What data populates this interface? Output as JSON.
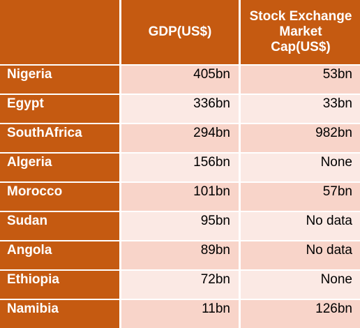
{
  "table": {
    "headers": {
      "corner": "",
      "gdp": "GDP(US$)",
      "market_cap": "Stock Exchange\nMarket\nCap(US$)"
    },
    "rows": [
      {
        "country": "Nigeria",
        "gdp": "405bn",
        "market_cap": "53bn"
      },
      {
        "country": "Egypt",
        "gdp": "336bn",
        "market_cap": "33bn"
      },
      {
        "country": "SouthAfrica",
        "gdp": "294bn",
        "market_cap": "982bn"
      },
      {
        "country": "Algeria",
        "gdp": "156bn",
        "market_cap": "None"
      },
      {
        "country": "Morocco",
        "gdp": "101bn",
        "market_cap": "57bn"
      },
      {
        "country": "Sudan",
        "gdp": "95bn",
        "market_cap": "No data"
      },
      {
        "country": "Angola",
        "gdp": "89bn",
        "market_cap": "No data"
      },
      {
        "country": "Ethiopia",
        "gdp": "72bn",
        "market_cap": "None"
      },
      {
        "country": "Namibia",
        "gdp": "11bn",
        "market_cap": "126bn"
      }
    ],
    "colors": {
      "header_bg": "#c55a11",
      "header_text": "#ffffff",
      "row_band_dark": "#f8d4c9",
      "row_band_light": "#fbe9e4"
    }
  }
}
